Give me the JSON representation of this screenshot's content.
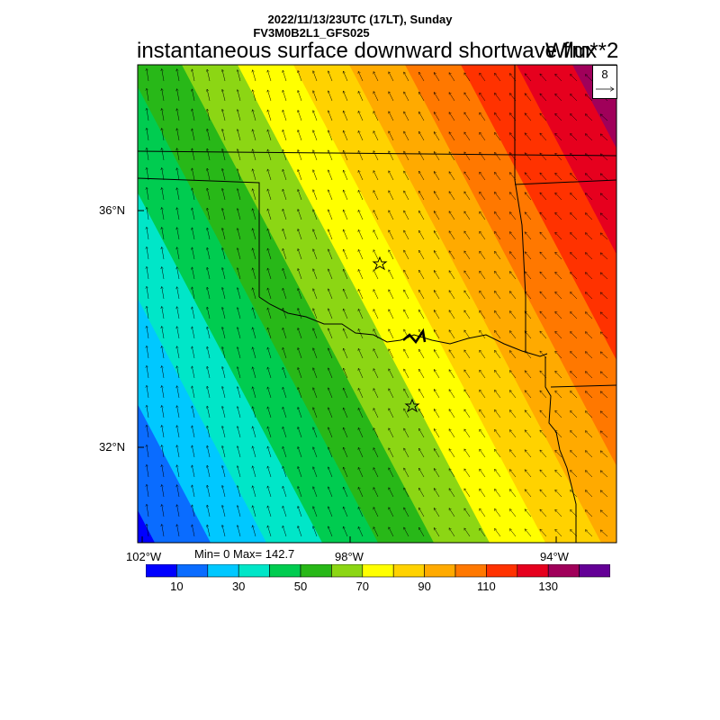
{
  "header": {
    "line1": "2022/11/13/23UTC (17LT), Sunday",
    "line2": "FV3M0B2L1_GFS025",
    "title": "instantaneous surface downward shortwave flux",
    "units": "W/m**2"
  },
  "stats": {
    "text": "Min= 0 Max= 142.7",
    "min": 0,
    "max": 142.7
  },
  "reference_vector": {
    "value": "8"
  },
  "axes": {
    "lat_labels": [
      "36°N",
      "32°N"
    ],
    "lon_labels": [
      "102°W",
      "98°W",
      "94°W"
    ]
  },
  "colorbar": {
    "colors": [
      "#0000ff",
      "#0a6cff",
      "#00c8ff",
      "#00e6c8",
      "#00cc50",
      "#28b818",
      "#8cd614",
      "#ffff00",
      "#ffd200",
      "#ffaa00",
      "#ff7800",
      "#ff3200",
      "#e6001e",
      "#a0005a",
      "#640096"
    ],
    "tick_labels": [
      "10",
      "30",
      "50",
      "70",
      "90",
      "110",
      "130"
    ]
  },
  "markers": [
    "city-star-1",
    "city-star-2"
  ]
}
